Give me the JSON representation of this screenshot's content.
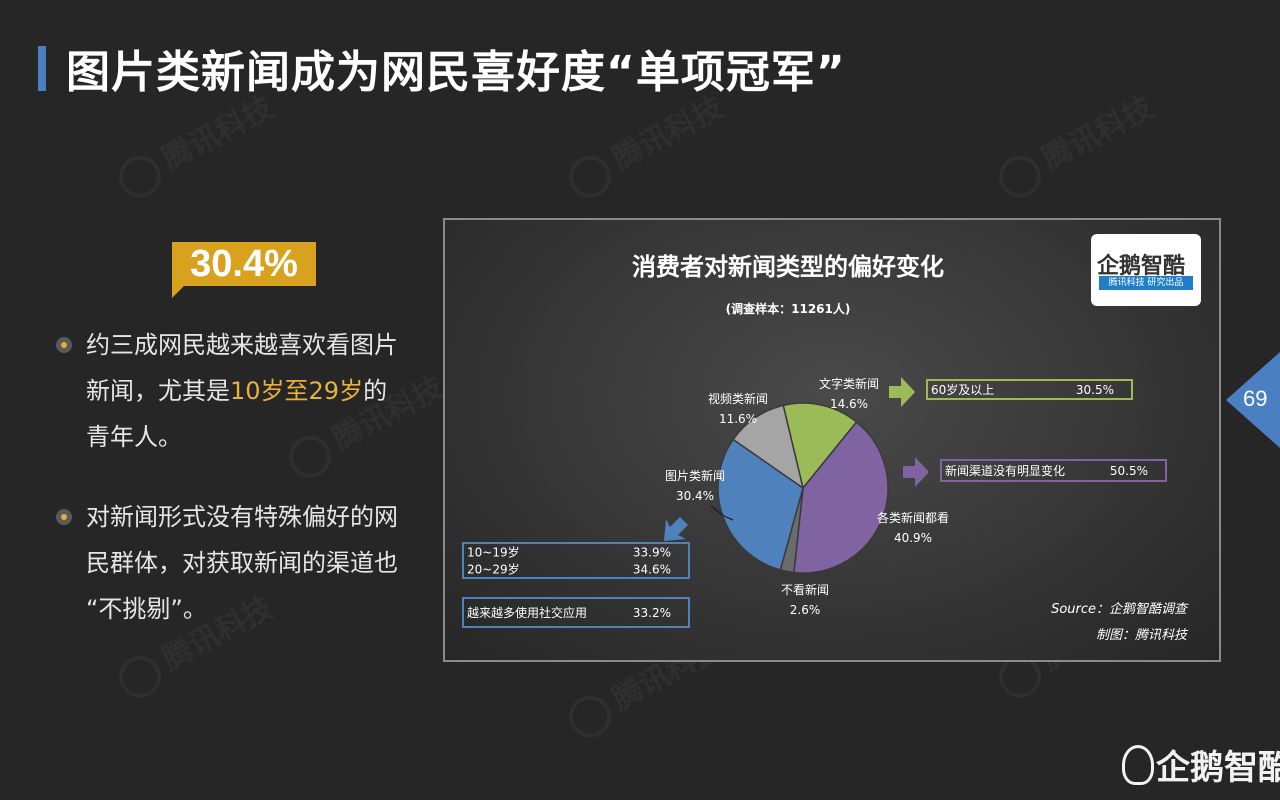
{
  "page": {
    "title": "图片类新闻成为网民喜好度“单项冠军”",
    "highlight_stat": "30.4%",
    "page_number": "69",
    "corner_logo": "企鹅智酷",
    "watermark": "腾讯科技",
    "bullets": [
      {
        "lines": [
          [
            {
              "t": "约三成网民越来越喜欢看图片"
            }
          ],
          [
            {
              "t": "新闻，尤其是"
            },
            {
              "t": "10岁至29岁",
              "hl": true
            },
            {
              "t": "的"
            }
          ],
          [
            {
              "t": "青年人。"
            }
          ]
        ]
      },
      {
        "lines": [
          [
            {
              "t": "对新闻形式没有特殊偏好的网"
            }
          ],
          [
            {
              "t": "民群体，对获取新闻的渠道也"
            }
          ],
          [
            {
              "t": "“不挑剔”。"
            }
          ]
        ]
      }
    ]
  },
  "logo": {
    "name": "企鹅智酷",
    "tag": "腾讯科技 研究出品"
  },
  "colors": {
    "accent": "#4a7fc1",
    "badge": "#d9a21e",
    "highlight": "#e8b33a"
  },
  "chart_data": {
    "type": "pie",
    "title": "消费者对新闻类型的偏好变化",
    "subtitle": "(调查样本：11261人)",
    "slices": [
      {
        "label": "文字类新闻",
        "value": 14.6,
        "display": "14.6%",
        "color": "#9bbb59"
      },
      {
        "label": "各类新闻都看",
        "value": 40.9,
        "display": "40.9%",
        "color": "#8064a2"
      },
      {
        "label": "不看新闻",
        "value": 2.6,
        "display": "2.6%",
        "color": "#6b6b6b"
      },
      {
        "label": "图片类新闻",
        "value": 30.4,
        "display": "30.4%",
        "color": "#4f81bd"
      },
      {
        "label": "视频类新闻",
        "value": 11.6,
        "display": "11.6%",
        "color": "#a5a5a5"
      }
    ],
    "callouts": [
      {
        "slice": "文字类新闻",
        "color": "#9bbb59",
        "rows": [
          {
            "label": "60岁及以上",
            "value": "30.5%"
          }
        ]
      },
      {
        "slice": "各类新闻都看",
        "color": "#8064a2",
        "rows": [
          {
            "label": "新闻渠道没有明显变化",
            "value": "50.5%"
          }
        ]
      },
      {
        "slice": "图片类新闻",
        "color": "#4f81bd",
        "rows": [
          {
            "label": "10~19岁",
            "value": "33.9%"
          },
          {
            "label": "20~29岁",
            "value": "34.6%"
          }
        ]
      },
      {
        "slice": "图片类新闻",
        "color": "#4f81bd",
        "rows": [
          {
            "label": "越来越多使用社交应用",
            "value": "33.2%"
          }
        ]
      }
    ],
    "source": "Source：企鹅智酷调查",
    "credit": "制图：腾讯科技"
  }
}
